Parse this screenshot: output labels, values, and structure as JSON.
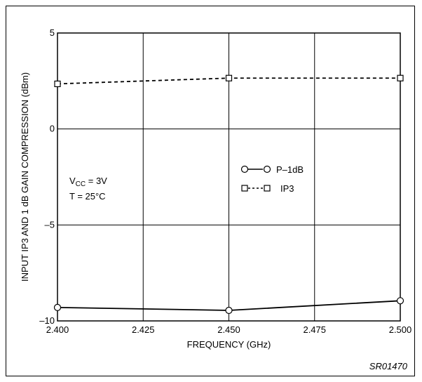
{
  "chart_data": {
    "type": "line",
    "xlabel": "FREQUENCY (GHz)",
    "ylabel": "INPUT IP3 AND 1 dB GAIN COMPRESSION (dBm)",
    "xlim": [
      2.4,
      2.5
    ],
    "ylim": [
      -10,
      5
    ],
    "x_ticks": [
      2.4,
      2.425,
      2.45,
      2.475,
      2.5
    ],
    "x_tick_labels": [
      "2.400",
      "2.425",
      "2.450",
      "2.475",
      "2.500"
    ],
    "y_ticks": [
      -10,
      -5,
      0,
      5
    ],
    "y_tick_labels": [
      "–10",
      "–5",
      "0",
      "5"
    ],
    "grid": true,
    "series": [
      {
        "name": "P–1dB",
        "marker": "circle",
        "line": "solid",
        "x": [
          2.4,
          2.45,
          2.5
        ],
        "y": [
          -9.3,
          -9.45,
          -8.95
        ]
      },
      {
        "name": "IP3",
        "marker": "square",
        "line": "dashed",
        "x": [
          2.4,
          2.45,
          2.5
        ],
        "y": [
          2.35,
          2.65,
          2.65
        ]
      }
    ],
    "legend": {
      "placement": "center-right",
      "entries": [
        {
          "symbol": "○ — ○",
          "label": "P–1dB"
        },
        {
          "symbol": "□ - - □",
          "label": "IP3"
        }
      ]
    },
    "conditions": {
      "vcc_main": "V",
      "vcc_sub": "CC",
      "vcc_value": " = 3V",
      "temperature": "T = 25°C"
    },
    "figure_id": "SR01470"
  }
}
